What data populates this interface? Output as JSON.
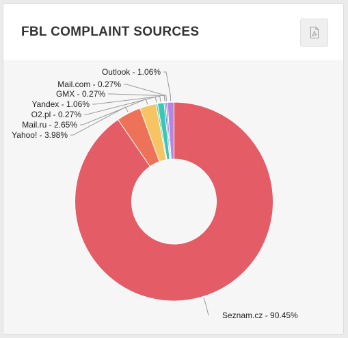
{
  "header": {
    "title": "FBL COMPLAINT SOURCES"
  },
  "toolbar": {
    "export_icon": "pdf-file-icon"
  },
  "chart_data": {
    "type": "pie",
    "donut": true,
    "title": "FBL COMPLAINT SOURCES",
    "slices": [
      {
        "name": "Seznam.cz",
        "value": 90.45,
        "label": "Seznam.cz - 90.45%",
        "color": "#e45c66"
      },
      {
        "name": "Yahoo!",
        "value": 3.98,
        "label": "Yahoo! - 3.98%",
        "color": "#ee7257"
      },
      {
        "name": "Mail.ru",
        "value": 2.65,
        "label": "Mail.ru - 2.65%",
        "color": "#f6c462"
      },
      {
        "name": "O2.pl",
        "value": 0.27,
        "label": "O2.pl - 0.27%",
        "color": "#5fc89a"
      },
      {
        "name": "Yandex",
        "value": 1.06,
        "label": "Yandex - 1.06%",
        "color": "#3cc7b4"
      },
      {
        "name": "GMX",
        "value": 0.27,
        "label": "GMX - 0.27%",
        "color": "#4f8fd8"
      },
      {
        "name": "Mail.com",
        "value": 0.27,
        "label": "Mail.com - 0.27%",
        "color": "#8f7ad0"
      },
      {
        "name": "Outlook",
        "value": 1.06,
        "label": "Outlook - 1.06%",
        "color": "#b486dd"
      }
    ]
  }
}
